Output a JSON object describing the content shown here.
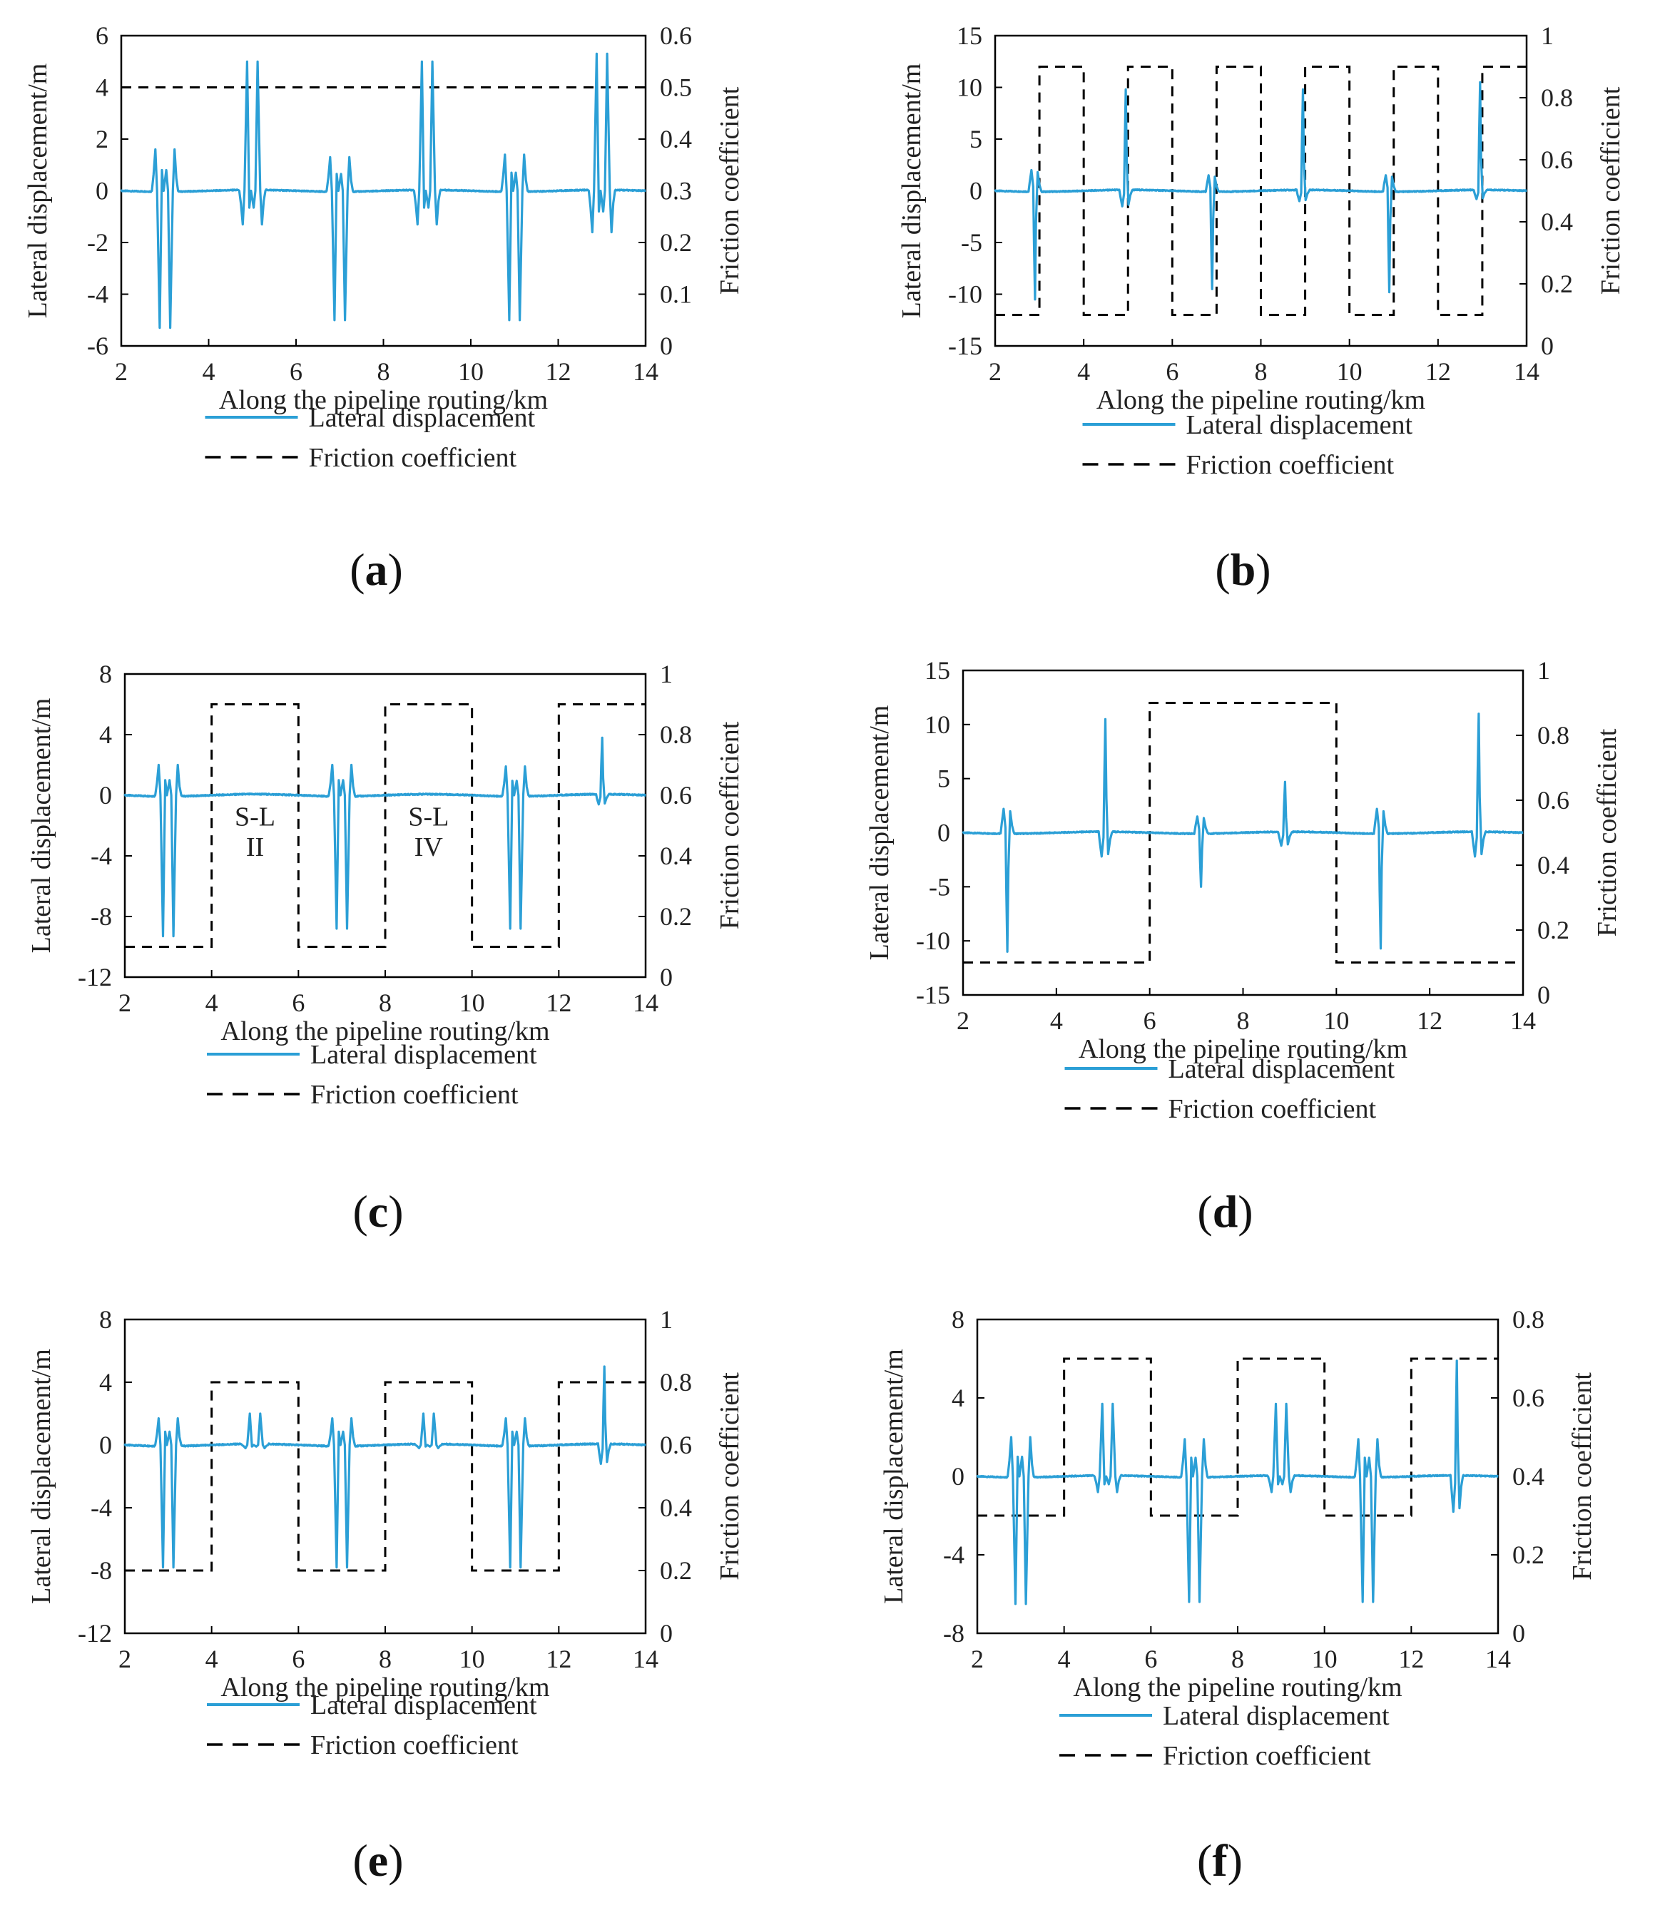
{
  "colors": {
    "displacement": "#2b9fd6",
    "friction": "#000000",
    "frame": "#000000"
  },
  "legend": {
    "displacement_label": "Lateral displacement",
    "friction_label": "Friction coefficient"
  },
  "axis_titles": {
    "x": "Along the pipeline routing/km",
    "y_left": "Lateral displacement/m",
    "y_right": "Friction coefficient"
  },
  "chart_data": [
    {
      "id": "a",
      "label": "a",
      "type": "line",
      "xlim": [
        2,
        14
      ],
      "ylim_left": [
        -6,
        6
      ],
      "ylim_right": [
        0,
        0.6
      ],
      "xticks": [
        "2",
        "4",
        "6",
        "8",
        "10",
        "12",
        "14"
      ],
      "yticks_left": [
        "6",
        "4",
        "2",
        "0",
        "-2",
        "-4",
        "-6"
      ],
      "yticks_right": [
        "0.6",
        "0.5",
        "0.4",
        "0.3",
        "0.2",
        "0.1",
        "0"
      ],
      "friction_segments": [
        {
          "x0": 2,
          "x1": 14,
          "mu": 0.5
        }
      ],
      "buckles": [
        {
          "x": 3.0,
          "main": -5.3,
          "side": 1.6
        },
        {
          "x": 5.0,
          "main": 5.0,
          "side": -1.3
        },
        {
          "x": 7.0,
          "main": -5.0,
          "side": 1.3
        },
        {
          "x": 9.0,
          "main": 5.0,
          "side": -1.3
        },
        {
          "x": 11.0,
          "main": -5.0,
          "side": 1.4
        },
        {
          "x": 13.0,
          "main": 5.3,
          "side": -1.6
        }
      ],
      "annotations": []
    },
    {
      "id": "b",
      "label": "b",
      "type": "line",
      "xlim": [
        2,
        14
      ],
      "ylim_left": [
        -15,
        15
      ],
      "ylim_right": [
        0,
        1
      ],
      "xticks": [
        "2",
        "4",
        "6",
        "8",
        "10",
        "12",
        "14"
      ],
      "yticks_left": [
        "15",
        "10",
        "5",
        "0",
        "-5",
        "-10",
        "-15"
      ],
      "yticks_right": [
        "1",
        "0.8",
        "0.6",
        "0.4",
        "0.2",
        "0"
      ],
      "friction_segments": [
        {
          "x0": 2,
          "x1": 3,
          "mu": 0.1
        },
        {
          "x0": 3,
          "x1": 4,
          "mu": 0.9
        },
        {
          "x0": 4,
          "x1": 5,
          "mu": 0.1
        },
        {
          "x0": 5,
          "x1": 6,
          "mu": 0.9
        },
        {
          "x0": 6,
          "x1": 7,
          "mu": 0.1
        },
        {
          "x0": 7,
          "x1": 8,
          "mu": 0.9
        },
        {
          "x0": 8,
          "x1": 9,
          "mu": 0.1
        },
        {
          "x0": 9,
          "x1": 10,
          "mu": 0.9
        },
        {
          "x0": 10,
          "x1": 11,
          "mu": 0.1
        },
        {
          "x0": 11,
          "x1": 12,
          "mu": 0.9
        },
        {
          "x0": 12,
          "x1": 13,
          "mu": 0.1
        },
        {
          "x0": 13,
          "x1": 14,
          "mu": 0.9
        }
      ],
      "buckles": [
        {
          "x": 2.9,
          "main": -10.5,
          "side": 2.0,
          "single": true
        },
        {
          "x": 4.95,
          "main": 9.8,
          "side": -1.5,
          "single": true
        },
        {
          "x": 6.9,
          "main": -9.5,
          "side": 1.5,
          "single": true
        },
        {
          "x": 8.95,
          "main": 9.8,
          "side": -1.0,
          "single": true
        },
        {
          "x": 10.9,
          "main": -9.8,
          "side": 1.5,
          "single": true
        },
        {
          "x": 12.95,
          "main": 10.5,
          "side": -0.8,
          "single": true
        }
      ],
      "annotations": []
    },
    {
      "id": "c",
      "label": "c",
      "type": "line",
      "xlim": [
        2,
        14
      ],
      "ylim_left": [
        -12,
        8
      ],
      "ylim_right": [
        0,
        1
      ],
      "xticks": [
        "2",
        "4",
        "6",
        "8",
        "10",
        "12",
        "14"
      ],
      "yticks_left": [
        "8",
        "4",
        "0",
        "-4",
        "-8",
        "-12"
      ],
      "yticks_right": [
        "1",
        "0.8",
        "0.6",
        "0.4",
        "0.2",
        "0"
      ],
      "friction_segments": [
        {
          "x0": 2,
          "x1": 4,
          "mu": 0.1
        },
        {
          "x0": 4,
          "x1": 6,
          "mu": 0.9
        },
        {
          "x0": 6,
          "x1": 8,
          "mu": 0.1
        },
        {
          "x0": 8,
          "x1": 10,
          "mu": 0.9
        },
        {
          "x0": 10,
          "x1": 12,
          "mu": 0.1
        },
        {
          "x0": 12,
          "x1": 14,
          "mu": 0.9
        }
      ],
      "buckles": [
        {
          "x": 3.0,
          "main": -9.3,
          "side": 2.0
        },
        {
          "x": 7.0,
          "main": -8.8,
          "side": 2.0
        },
        {
          "x": 11.0,
          "main": -8.8,
          "side": 1.9
        },
        {
          "x": 13.0,
          "main": 3.8,
          "side": -0.6,
          "single": true
        }
      ],
      "annotations": [
        {
          "x": 5,
          "y": -2.0,
          "text": "S-L"
        },
        {
          "x": 5,
          "y": -4.0,
          "text": "II"
        },
        {
          "x": 9,
          "y": -2.0,
          "text": "S-L"
        },
        {
          "x": 9,
          "y": -4.0,
          "text": "IV"
        }
      ]
    },
    {
      "id": "d",
      "label": "d",
      "type": "line",
      "xlim": [
        2,
        14
      ],
      "ylim_left": [
        -15,
        15
      ],
      "ylim_right": [
        0,
        1
      ],
      "xticks": [
        "2",
        "4",
        "6",
        "8",
        "10",
        "12",
        "14"
      ],
      "yticks_left": [
        "15",
        "10",
        "5",
        "0",
        "-5",
        "-10",
        "-15"
      ],
      "yticks_right": [
        "1",
        "0.8",
        "0.6",
        "0.4",
        "0.2",
        "0"
      ],
      "friction_segments": [
        {
          "x0": 2,
          "x1": 6,
          "mu": 0.1
        },
        {
          "x0": 6,
          "x1": 10,
          "mu": 0.9
        },
        {
          "x0": 10,
          "x1": 14,
          "mu": 0.1
        }
      ],
      "buckles": [
        {
          "x": 2.95,
          "main": -11.0,
          "side": 2.2,
          "single": true
        },
        {
          "x": 5.05,
          "main": 10.5,
          "side": -2.2,
          "single": true
        },
        {
          "x": 7.1,
          "main": -5.0,
          "side": 1.5,
          "single": true
        },
        {
          "x": 8.9,
          "main": 4.7,
          "side": -1.2,
          "single": true
        },
        {
          "x": 10.95,
          "main": -10.7,
          "side": 2.2,
          "single": true
        },
        {
          "x": 13.05,
          "main": 11.0,
          "side": -2.2,
          "single": true
        }
      ],
      "annotations": []
    },
    {
      "id": "e",
      "label": "e",
      "type": "line",
      "xlim": [
        2,
        14
      ],
      "ylim_left": [
        -12,
        8
      ],
      "ylim_right": [
        0,
        1
      ],
      "xticks": [
        "2",
        "4",
        "6",
        "8",
        "10",
        "12",
        "14"
      ],
      "yticks_left": [
        "8",
        "4",
        "0",
        "-4",
        "-8",
        "-12"
      ],
      "yticks_right": [
        "1",
        "0.8",
        "0.6",
        "0.4",
        "0.2",
        "0"
      ],
      "friction_segments": [
        {
          "x0": 2,
          "x1": 4,
          "mu": 0.2
        },
        {
          "x0": 4,
          "x1": 6,
          "mu": 0.8
        },
        {
          "x0": 6,
          "x1": 8,
          "mu": 0.2
        },
        {
          "x0": 8,
          "x1": 10,
          "mu": 0.8
        },
        {
          "x0": 10,
          "x1": 12,
          "mu": 0.2
        },
        {
          "x0": 12,
          "x1": 14,
          "mu": 0.8
        }
      ],
      "buckles": [
        {
          "x": 3.0,
          "main": -7.8,
          "side": 1.7
        },
        {
          "x": 5.0,
          "main": 2.0,
          "side": -0.2
        },
        {
          "x": 7.0,
          "main": -7.8,
          "side": 1.7
        },
        {
          "x": 9.0,
          "main": 2.0,
          "side": -0.2
        },
        {
          "x": 11.0,
          "main": -7.8,
          "side": 1.7
        },
        {
          "x": 13.05,
          "main": 5.0,
          "side": -1.2,
          "single": true
        }
      ],
      "annotations": []
    },
    {
      "id": "f",
      "label": "f",
      "type": "line",
      "xlim": [
        2,
        14
      ],
      "ylim_left": [
        -8,
        8
      ],
      "ylim_right": [
        0,
        0.8
      ],
      "xticks": [
        "2",
        "4",
        "6",
        "8",
        "10",
        "12",
        "14"
      ],
      "yticks_left": [
        "8",
        "4",
        "0",
        "-4",
        "-8"
      ],
      "yticks_right": [
        "0.8",
        "0.6",
        "0.4",
        "0.2",
        "0"
      ],
      "friction_segments": [
        {
          "x0": 2,
          "x1": 4,
          "mu": 0.3
        },
        {
          "x0": 4,
          "x1": 6,
          "mu": 0.7
        },
        {
          "x0": 6,
          "x1": 8,
          "mu": 0.3
        },
        {
          "x0": 8,
          "x1": 10,
          "mu": 0.7
        },
        {
          "x0": 10,
          "x1": 12,
          "mu": 0.3
        },
        {
          "x0": 12,
          "x1": 14,
          "mu": 0.7
        }
      ],
      "buckles": [
        {
          "x": 3.0,
          "main": -6.5,
          "side": 2.0
        },
        {
          "x": 5.0,
          "main": 3.7,
          "side": -0.8
        },
        {
          "x": 7.0,
          "main": -6.4,
          "side": 1.9
        },
        {
          "x": 9.0,
          "main": 3.7,
          "side": -0.8
        },
        {
          "x": 11.0,
          "main": -6.4,
          "side": 1.9
        },
        {
          "x": 13.05,
          "main": 5.9,
          "side": -1.8,
          "single": true
        }
      ],
      "annotations": []
    }
  ]
}
